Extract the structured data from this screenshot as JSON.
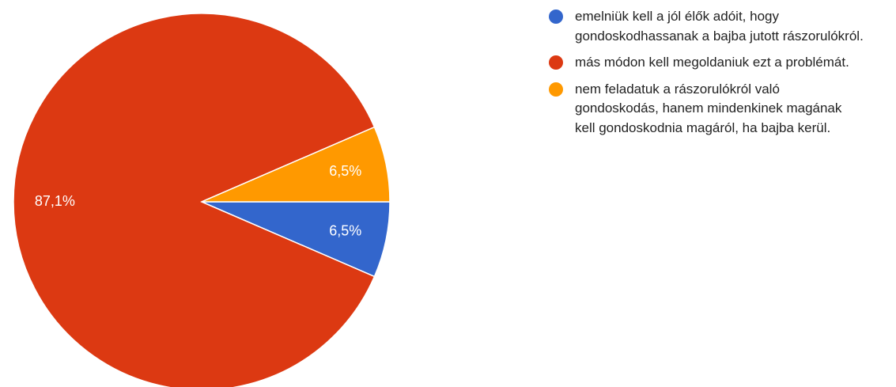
{
  "chart_data": {
    "type": "pie",
    "categories": [
      "emelniük kell a jól élők adóit, hogy gondoskodhassanak a bajba jutott rászorulókról.",
      "más módon kell megoldaniuk ezt a problémát.",
      "nem feladatuk a rászorulókról való gondoskodás, hanem mindenkinek magának kell gondoskodnia magáról, ha bajba kerül."
    ],
    "values": [
      6.5,
      87.1,
      6.5
    ],
    "value_labels": [
      "6,5%",
      "87,1%",
      "6,5%"
    ],
    "colors": [
      "#3366cc",
      "#dc3912",
      "#ff9900"
    ]
  }
}
